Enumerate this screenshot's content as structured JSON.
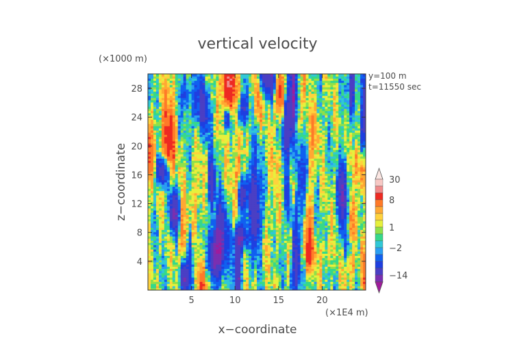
{
  "chart_data": {
    "type": "heatmap",
    "title": "vertical velocity",
    "xlabel": "x−coordinate",
    "ylabel": "z−coordinate",
    "x_unit": "(×1E4 m)",
    "y_unit": "(×1000 m)",
    "annotations": [
      "y=100  m",
      "t=11550 sec"
    ],
    "xlim": [
      0,
      25
    ],
    "ylim": [
      0,
      30
    ],
    "x_ticks": [
      5,
      10,
      15,
      20
    ],
    "y_ticks": [
      4,
      8,
      12,
      16,
      20,
      24,
      28
    ],
    "colorbar": {
      "labels": [
        "30",
        "8",
        "1",
        "−2",
        "−14"
      ],
      "bands": [
        {
          "from": -30,
          "to": -20,
          "color": "#a01b9c"
        },
        {
          "from": -20,
          "to": -14,
          "color": "#7a2fb0"
        },
        {
          "from": -14,
          "to": -8,
          "color": "#4a3fc4"
        },
        {
          "from": -8,
          "to": -5,
          "color": "#1f3fe0"
        },
        {
          "from": -5,
          "to": -3,
          "color": "#1060f0"
        },
        {
          "from": -3,
          "to": -2,
          "color": "#2a9ef2"
        },
        {
          "from": -2,
          "to": -1,
          "color": "#30c8d6"
        },
        {
          "from": -1,
          "to": 0,
          "color": "#36d88a"
        },
        {
          "from": 0,
          "to": 1,
          "color": "#8fe04a"
        },
        {
          "from": 1,
          "to": 2,
          "color": "#e6f03c"
        },
        {
          "from": 2,
          "to": 3,
          "color": "#ffd23c"
        },
        {
          "from": 3,
          "to": 5,
          "color": "#ffa833"
        },
        {
          "from": 5,
          "to": 8,
          "color": "#ff7a28"
        },
        {
          "from": 8,
          "to": 14,
          "color": "#ee2a22"
        },
        {
          "from": 14,
          "to": 20,
          "color": "#f08a8a"
        },
        {
          "from": 20,
          "to": 30,
          "color": "#f7c8c4"
        },
        {
          "from": 30,
          "to": 40,
          "color": "#fbe6e2"
        }
      ]
    }
  }
}
